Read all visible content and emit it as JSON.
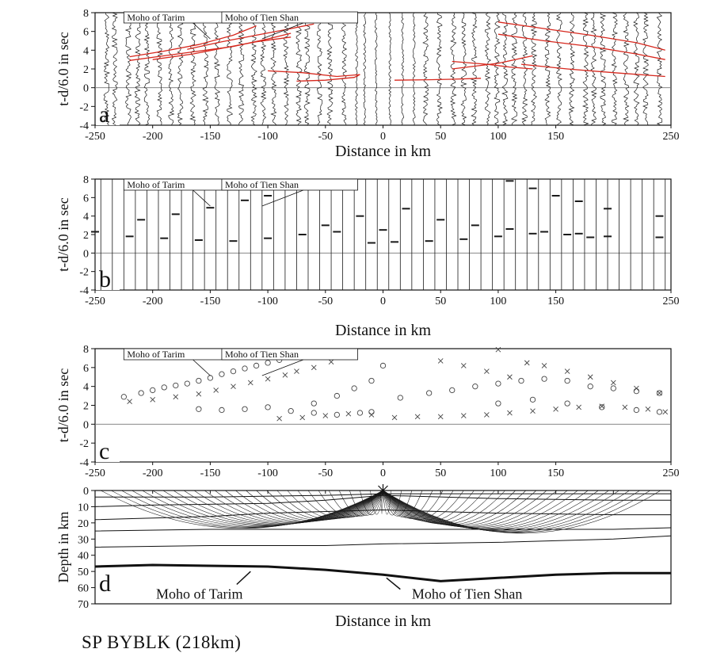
{
  "caption": "SP BYBLK (218km)",
  "colors": {
    "axis": "#111111",
    "picks": "#d6281e",
    "trace": "#1a1a1a"
  },
  "chart_data": [
    {
      "panel": "a",
      "type": "line",
      "description_type": "seismic record section with travel-time pick curves",
      "xlabel": "Distance in km",
      "ylabel": "t-d/6.0 in sec",
      "xlim": [
        -250,
        250
      ],
      "ylim": [
        -4,
        8
      ],
      "xticks": [
        "-250",
        "-200",
        "-150",
        "-100",
        "-50",
        "0",
        "50",
        "100",
        "150",
        "250"
      ],
      "yticks": [
        "8",
        "6",
        "4",
        "2",
        "0",
        "-2",
        "-4"
      ],
      "annotations": [
        "Moho of Tarim",
        "Moho of Tien Shan"
      ],
      "series": [
        {
          "x": [
            -220,
            -190,
            -160,
            -130,
            -110
          ],
          "y": [
            3.3,
            3.9,
            4.6,
            5.6,
            6.6
          ]
        },
        {
          "x": [
            -220,
            -190,
            -160,
            -130,
            -100,
            -80
          ],
          "y": [
            2.9,
            3.4,
            3.9,
            4.4,
            5.2,
            5.8
          ]
        },
        {
          "x": [
            -200,
            -165,
            -140,
            -110,
            -80
          ],
          "y": [
            3.0,
            3.6,
            4.2,
            4.9,
            5.4
          ]
        },
        {
          "x": [
            -170,
            -140,
            -110,
            -80,
            -60
          ],
          "y": [
            4.1,
            4.9,
            5.6,
            6.3,
            6.8
          ]
        },
        {
          "x": [
            -100,
            -70,
            -40,
            -20
          ],
          "y": [
            1.8,
            1.6,
            1.2,
            1.4
          ]
        },
        {
          "x": [
            -75,
            -50,
            -25,
            -20
          ],
          "y": [
            0.7,
            0.8,
            1.1,
            1.4
          ]
        },
        {
          "x": [
            10,
            40,
            60,
            85
          ],
          "y": [
            0.8,
            0.85,
            0.9,
            1.0
          ]
        },
        {
          "x": [
            60,
            90,
            110,
            130
          ],
          "y": [
            2.8,
            2.5,
            2.2,
            2.0
          ]
        },
        {
          "x": [
            100,
            140,
            180,
            220,
            245
          ],
          "y": [
            7.0,
            6.3,
            5.6,
            4.8,
            4.0
          ]
        },
        {
          "x": [
            100,
            140,
            180,
            220,
            245
          ],
          "y": [
            5.7,
            5.0,
            4.4,
            3.6,
            3.0
          ]
        },
        {
          "x": [
            120,
            160,
            200,
            245
          ],
          "y": [
            2.5,
            2.0,
            1.6,
            1.2
          ]
        },
        {
          "x": [
            60,
            100,
            130
          ],
          "y": [
            2.0,
            2.6,
            3.4
          ]
        }
      ]
    },
    {
      "panel": "b",
      "type": "line",
      "description_type": "synthetic seismogram section",
      "xlabel": "Distance in km",
      "ylabel": "t-d/6.0 in sec",
      "xlim": [
        -250,
        250
      ],
      "ylim": [
        -4,
        8
      ],
      "xticks": [
        "-250",
        "-200",
        "-150",
        "-100",
        "-50",
        "0",
        "50",
        "100",
        "150",
        "250"
      ],
      "yticks": [
        "8",
        "6",
        "4",
        "2",
        "0",
        "-2",
        "-4"
      ],
      "annotations": [
        "Moho of Tarim",
        "Moho of Tien Shan"
      ],
      "series": [
        {
          "x": [
            -250,
            -220,
            -190,
            -160,
            -130,
            -100,
            -70,
            -40,
            -10
          ],
          "y": [
            2.3,
            1.8,
            1.6,
            1.4,
            1.3,
            1.6,
            2.0,
            2.3,
            1.1
          ]
        },
        {
          "x": [
            -210,
            -180,
            -150,
            -120,
            -100
          ],
          "y": [
            3.6,
            4.2,
            4.9,
            5.7,
            6.2
          ]
        },
        {
          "x": [
            -50,
            -20,
            0
          ],
          "y": [
            3.0,
            4.0,
            2.5
          ]
        },
        {
          "x": [
            10,
            40,
            70,
            100,
            130,
            160,
            180
          ],
          "y": [
            1.2,
            1.3,
            1.5,
            1.8,
            2.1,
            2.0,
            1.7
          ]
        },
        {
          "x": [
            20,
            50,
            80,
            110,
            140,
            170,
            195,
            240
          ],
          "y": [
            4.8,
            3.6,
            3.0,
            2.6,
            2.3,
            2.1,
            1.8,
            1.7
          ]
        },
        {
          "x": [
            110,
            130,
            150,
            170,
            195,
            240
          ],
          "y": [
            7.8,
            7.0,
            6.2,
            5.6,
            4.8,
            4.0
          ]
        }
      ]
    },
    {
      "panel": "c",
      "type": "scatter",
      "description_type": "observed (o) and calculated (x) travel times",
      "xlabel": "",
      "ylabel": "t-d/6.0 in sec",
      "xlim": [
        -250,
        250
      ],
      "ylim": [
        -4,
        8
      ],
      "xticks": [
        "-250",
        "-200",
        "-150",
        "-100",
        "-50",
        "0",
        "50",
        "100",
        "150",
        "250"
      ],
      "yticks": [
        "8",
        "6",
        "4",
        "2",
        "0",
        "-2",
        "-4"
      ],
      "annotations": [
        "Moho of Tarim",
        "Moho of Tien Shan"
      ],
      "series": [
        {
          "x": [
            -225,
            -210,
            -200,
            -190,
            -180,
            -170,
            -160,
            -150,
            -140,
            -130,
            -120,
            -110,
            -100,
            -90
          ],
          "y": [
            2.9,
            3.3,
            3.6,
            3.9,
            4.1,
            4.3,
            4.6,
            4.9,
            5.3,
            5.6,
            5.9,
            6.2,
            6.5,
            6.8
          ]
        },
        {
          "x": [
            -220,
            -200,
            -180,
            -160,
            -145,
            -130,
            -115,
            -100,
            -85,
            -75,
            -60,
            -45
          ],
          "y": [
            2.4,
            2.6,
            2.9,
            3.2,
            3.6,
            4.0,
            4.4,
            4.8,
            5.2,
            5.6,
            6.0,
            6.6
          ]
        },
        {
          "x": [
            -160,
            -140,
            -120,
            -100,
            -80,
            -60,
            -40,
            -20,
            -10
          ],
          "y": [
            1.6,
            1.5,
            1.6,
            1.8,
            1.4,
            1.2,
            1.0,
            1.2,
            1.3
          ]
        },
        {
          "x": [
            -90,
            -70,
            -50,
            -30,
            -10
          ],
          "y": [
            0.6,
            0.7,
            0.9,
            1.1,
            1.0
          ]
        },
        {
          "x": [
            -60,
            -40,
            -25,
            -10,
            0
          ],
          "y": [
            2.2,
            3.0,
            3.8,
            4.6,
            6.2
          ]
        },
        {
          "x": [
            10,
            30,
            50,
            70,
            90,
            110,
            130,
            150,
            170,
            190,
            210,
            230,
            245
          ],
          "y": [
            0.7,
            0.8,
            0.8,
            0.9,
            1.0,
            1.2,
            1.4,
            1.6,
            1.8,
            1.9,
            1.8,
            1.6,
            1.3
          ]
        },
        {
          "x": [
            15,
            40,
            60,
            80,
            100,
            120,
            140,
            160,
            180,
            200,
            220,
            240
          ],
          "y": [
            2.8,
            3.3,
            3.6,
            4.0,
            4.3,
            4.6,
            4.8,
            4.6,
            4.0,
            3.8,
            3.5,
            3.3
          ]
        },
        {
          "x": [
            50,
            70,
            90,
            110,
            125,
            140,
            160,
            180,
            200,
            220,
            240
          ],
          "y": [
            6.7,
            6.2,
            5.6,
            5.0,
            6.5,
            6.2,
            5.6,
            5.0,
            4.4,
            3.8,
            3.3
          ]
        },
        {
          "x": [
            100,
            130,
            160,
            190,
            220,
            240
          ],
          "y": [
            2.2,
            2.6,
            2.2,
            1.8,
            1.5,
            1.3
          ]
        },
        {
          "x": [
            100
          ],
          "y": [
            7.9
          ]
        }
      ]
    },
    {
      "panel": "d",
      "type": "line",
      "description_type": "ray-tracing velocity model",
      "xlabel": "Distance in km",
      "ylabel": "Depth in km",
      "xlim": [
        -250,
        250
      ],
      "ylim": [
        0,
        70
      ],
      "yticks": [
        "0",
        "10",
        "20",
        "30",
        "40",
        "50",
        "60",
        "70"
      ],
      "annotations": [
        "Moho of Tarim",
        "Moho of Tien Shan"
      ],
      "source_x": 0,
      "series": [
        {
          "x": [
            -250,
            -150,
            -50,
            0,
            50,
            150,
            250
          ],
          "y": [
            4,
            4,
            3,
            2,
            2,
            2,
            2
          ]
        },
        {
          "x": [
            -250,
            -200,
            -100,
            -50,
            0,
            100,
            200,
            250
          ],
          "y": [
            10,
            9,
            8,
            6,
            3,
            5,
            6,
            6
          ]
        },
        {
          "x": [
            -250,
            -150,
            -100,
            0,
            100,
            200,
            250
          ],
          "y": [
            18,
            16,
            14,
            12,
            14,
            15,
            15
          ]
        },
        {
          "x": [
            -250,
            -150,
            -50,
            0,
            100,
            200,
            250
          ],
          "y": [
            25,
            24,
            24,
            24,
            24,
            24,
            23
          ]
        },
        {
          "x": [
            -250,
            -150,
            -50,
            0,
            100,
            200,
            250
          ],
          "y": [
            35,
            34,
            34,
            33,
            32,
            30,
            28
          ]
        },
        {
          "x": [
            -250,
            -200,
            -100,
            -50,
            0,
            50,
            100,
            150,
            200,
            250
          ],
          "y": [
            47,
            46,
            47,
            49,
            52,
            56,
            54,
            52,
            51,
            51
          ]
        }
      ]
    }
  ]
}
